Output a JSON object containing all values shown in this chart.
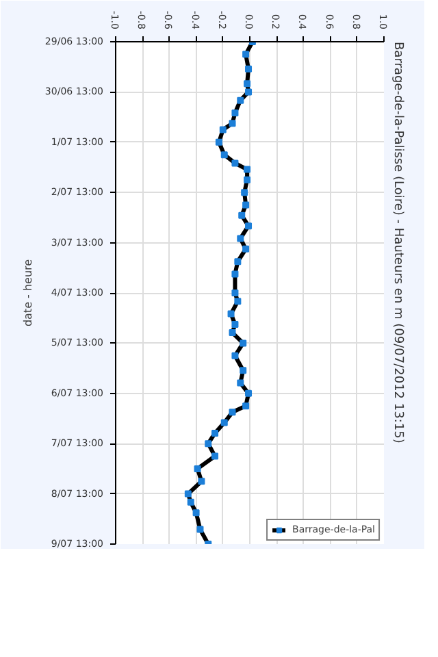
{
  "chart_data": {
    "type": "line",
    "orientation": "horizontal",
    "title": "Barrage-de-la-Palisse (Loire) - Hauteurs en m (09/07/2012 13:15)",
    "ylabel": "date - heure",
    "x": [
      "2012-06-29T13:00",
      "2012-06-29T19:00",
      "2012-06-30T02:00",
      "2012-06-30T09:00",
      "2012-06-30T13:00",
      "2012-06-30T17:00",
      "2012-06-30T23:00",
      "2012-07-01T04:00",
      "2012-07-01T07:00",
      "2012-07-01T13:00",
      "2012-07-01T19:00",
      "2012-07-01T23:00",
      "2012-07-02T02:00",
      "2012-07-02T07:00",
      "2012-07-02T13:00",
      "2012-07-02T19:00",
      "2012-07-03T00:00",
      "2012-07-03T05:00",
      "2012-07-03T11:00",
      "2012-07-03T16:00",
      "2012-07-03T22:00",
      "2012-07-04T04:00",
      "2012-07-04T13:00",
      "2012-07-04T17:00",
      "2012-07-04T23:00",
      "2012-07-05T04:00",
      "2012-07-05T08:00",
      "2012-07-05T13:00",
      "2012-07-05T19:00",
      "2012-07-06T02:00",
      "2012-07-06T08:00",
      "2012-07-06T13:00",
      "2012-07-06T19:00",
      "2012-07-06T22:00",
      "2012-07-07T03:00",
      "2012-07-07T08:00",
      "2012-07-07T13:00",
      "2012-07-07T19:00",
      "2012-07-08T01:00",
      "2012-07-08T07:00",
      "2012-07-08T13:00",
      "2012-07-08T17:00",
      "2012-07-08T22:00",
      "2012-07-09T06:00",
      "2012-07-09T13:00"
    ],
    "series": [
      {
        "name": "Barrage-de-la-Pal",
        "color": "#1c7fd8",
        "values": [
          0.02,
          -0.03,
          -0.01,
          -0.02,
          -0.01,
          -0.07,
          -0.11,
          -0.13,
          -0.2,
          -0.23,
          -0.19,
          -0.11,
          -0.02,
          -0.02,
          -0.04,
          -0.03,
          -0.06,
          -0.01,
          -0.07,
          -0.03,
          -0.09,
          -0.11,
          -0.11,
          -0.09,
          -0.14,
          -0.11,
          -0.13,
          -0.05,
          -0.11,
          -0.05,
          -0.07,
          -0.01,
          -0.03,
          -0.13,
          -0.19,
          -0.26,
          -0.31,
          -0.26,
          -0.39,
          -0.36,
          -0.46,
          -0.44,
          -0.4,
          -0.37,
          -0.31
        ]
      }
    ],
    "xlim": [
      -1.0,
      1.0
    ],
    "xticks": [
      {
        "value": -1.0,
        "label": "-1.0"
      },
      {
        "value": -0.8,
        "label": "-0.8"
      },
      {
        "value": -0.6,
        "label": "-0.6"
      },
      {
        "value": -0.4,
        "label": "-0.4"
      },
      {
        "value": -0.2,
        "label": "-0.2"
      },
      {
        "value": 0,
        "label": "0.0"
      },
      {
        "value": 0.2,
        "label": "0.2"
      },
      {
        "value": 0.4,
        "label": "0.4"
      },
      {
        "value": 0.6,
        "label": "0.6"
      },
      {
        "value": 0.8,
        "label": "0.8"
      },
      {
        "value": 1.0,
        "label": "1.0"
      }
    ],
    "ylim": [
      "2012-07-09T13:00",
      "2012-06-29T13:00"
    ],
    "yticks": [
      {
        "value": "2012-06-29T13:00",
        "label": "29/06 13:00"
      },
      {
        "value": "2012-06-30T13:00",
        "label": "30/06 13:00"
      },
      {
        "value": "2012-07-01T13:00",
        "label": "1/07 13:00"
      },
      {
        "value": "2012-07-02T13:00",
        "label": "2/07 13:00"
      },
      {
        "value": "2012-07-03T13:00",
        "label": "3/07 13:00"
      },
      {
        "value": "2012-07-04T13:00",
        "label": "4/07 13:00"
      },
      {
        "value": "2012-07-05T13:00",
        "label": "5/07 13:00"
      },
      {
        "value": "2012-07-06T13:00",
        "label": "6/07 13:00"
      },
      {
        "value": "2012-07-07T13:00",
        "label": "7/07 13:00"
      },
      {
        "value": "2012-07-08T13:00",
        "label": "8/07 13:00"
      },
      {
        "value": "2012-07-09T13:00",
        "label": "9/07 13:00"
      }
    ],
    "grid": true,
    "legend": "bottom right",
    "marker": "square",
    "line_style": "solid"
  }
}
